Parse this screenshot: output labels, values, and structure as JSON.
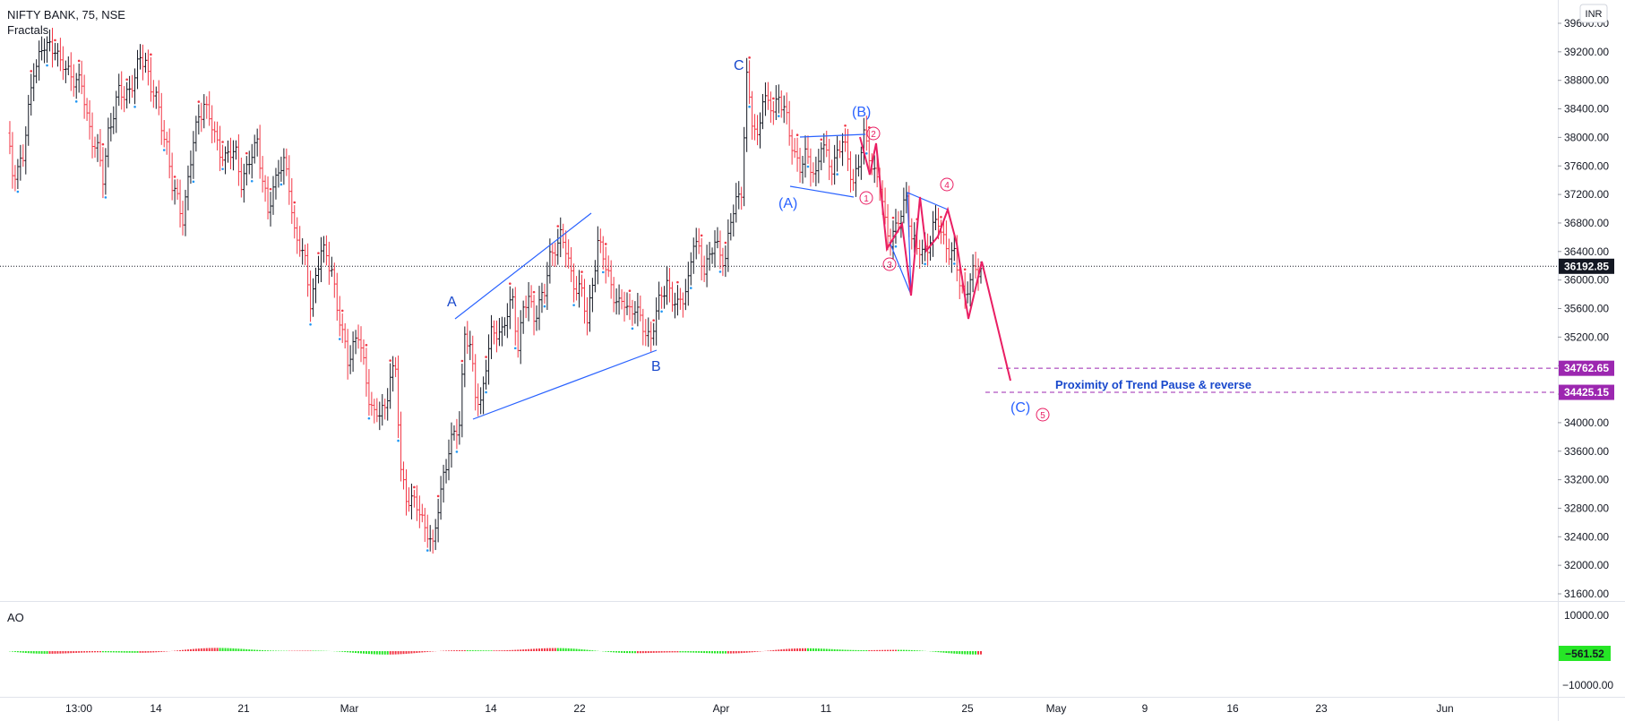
{
  "header": {
    "symbol": "NIFTY BANK, 75, NSE",
    "indicator": "Fractals",
    "currency": "INR"
  },
  "ao_panel": {
    "label": "AO",
    "last_value": "−561.52"
  },
  "chart_data": {
    "type": "candlestick",
    "price_axis": {
      "ticks": [
        "39600.00",
        "39200.00",
        "38800.00",
        "38400.00",
        "38000.00",
        "37600.00",
        "37200.00",
        "36800.00",
        "36400.00",
        "36000.00",
        "35600.00",
        "35200.00",
        "34800.00",
        "34400.00",
        "34000.00",
        "33600.00",
        "33200.00",
        "32800.00",
        "32400.00",
        "32000.00",
        "31600.00"
      ],
      "range": [
        31600,
        39600
      ]
    },
    "ao_axis": {
      "ticks": [
        "10000.00",
        "−10000.00"
      ]
    },
    "time_axis": {
      "ticks": [
        "13:00",
        "14",
        "21",
        "Mar",
        "14",
        "22",
        "Apr",
        "11",
        "25",
        "May",
        "9",
        "16",
        "23",
        "Jun"
      ]
    },
    "current_price": "36192.85",
    "levels": [
      {
        "label": "34762.65",
        "value": 34762.65,
        "color": "#9c27b0"
      },
      {
        "label": "34425.15",
        "value": 34425.15,
        "color": "#9c27b0"
      }
    ],
    "path_anchors": [
      [
        0,
        38000
      ],
      [
        2,
        37500
      ],
      [
        6,
        37700
      ],
      [
        10,
        39000
      ],
      [
        14,
        39250
      ],
      [
        18,
        39300
      ],
      [
        20,
        39000
      ],
      [
        24,
        38900
      ],
      [
        28,
        38700
      ],
      [
        30,
        38300
      ],
      [
        32,
        38000
      ],
      [
        34,
        37800
      ],
      [
        36,
        37400
      ],
      [
        38,
        38100
      ],
      [
        42,
        38600
      ],
      [
        44,
        38600
      ],
      [
        48,
        38800
      ],
      [
        50,
        39100
      ],
      [
        52,
        39100
      ],
      [
        54,
        38700
      ],
      [
        56,
        38500
      ],
      [
        60,
        37900
      ],
      [
        62,
        37300
      ],
      [
        66,
        36900
      ],
      [
        68,
        37400
      ],
      [
        70,
        37900
      ],
      [
        72,
        38300
      ],
      [
        74,
        38500
      ],
      [
        78,
        38000
      ],
      [
        82,
        37700
      ],
      [
        86,
        37800
      ],
      [
        88,
        37400
      ],
      [
        90,
        37500
      ],
      [
        94,
        38000
      ],
      [
        96,
        37400
      ],
      [
        98,
        36900
      ],
      [
        100,
        37300
      ],
      [
        102,
        37600
      ],
      [
        104,
        37600
      ],
      [
        106,
        37300
      ],
      [
        108,
        36700
      ],
      [
        110,
        36500
      ],
      [
        112,
        36200
      ],
      [
        114,
        35700
      ],
      [
        118,
        36400
      ],
      [
        120,
        36300
      ],
      [
        122,
        36200
      ],
      [
        124,
        35600
      ],
      [
        126,
        35200
      ],
      [
        128,
        34900
      ],
      [
        130,
        35100
      ],
      [
        132,
        35200
      ],
      [
        134,
        34800
      ],
      [
        136,
        34400
      ],
      [
        138,
        34100
      ],
      [
        140,
        34100
      ],
      [
        142,
        34200
      ],
      [
        144,
        34700
      ],
      [
        146,
        34700
      ],
      [
        148,
        33300
      ],
      [
        150,
        33000
      ],
      [
        154,
        32800
      ],
      [
        158,
        32500
      ],
      [
        160,
        32200
      ],
      [
        162,
        32800
      ],
      [
        164,
        33300
      ],
      [
        166,
        33600
      ],
      [
        168,
        33800
      ],
      [
        170,
        34000
      ],
      [
        172,
        35300
      ],
      [
        174,
        35000
      ],
      [
        176,
        34400
      ],
      [
        178,
        34300
      ],
      [
        180,
        34800
      ],
      [
        182,
        35200
      ],
      [
        184,
        35300
      ],
      [
        186,
        35300
      ],
      [
        188,
        35500
      ],
      [
        190,
        35700
      ],
      [
        192,
        35100
      ],
      [
        194,
        35600
      ],
      [
        196,
        35700
      ],
      [
        198,
        35500
      ],
      [
        200,
        35700
      ],
      [
        202,
        35800
      ],
      [
        204,
        36300
      ],
      [
        206,
        36500
      ],
      [
        208,
        36600
      ],
      [
        210,
        36400
      ],
      [
        212,
        36100
      ],
      [
        214,
        35900
      ],
      [
        216,
        35800
      ],
      [
        218,
        35400
      ],
      [
        220,
        36000
      ],
      [
        222,
        36500
      ],
      [
        224,
        36300
      ],
      [
        226,
        36100
      ],
      [
        228,
        35800
      ],
      [
        230,
        35600
      ],
      [
        232,
        35700
      ],
      [
        234,
        35600
      ],
      [
        236,
        35600
      ],
      [
        238,
        35400
      ],
      [
        240,
        35300
      ],
      [
        242,
        35200
      ],
      [
        244,
        35500
      ],
      [
        246,
        35800
      ],
      [
        248,
        36000
      ],
      [
        250,
        35700
      ],
      [
        252,
        35600
      ],
      [
        254,
        35800
      ],
      [
        256,
        36000
      ],
      [
        258,
        36500
      ],
      [
        260,
        36400
      ],
      [
        262,
        36200
      ],
      [
        264,
        36300
      ],
      [
        266,
        36500
      ],
      [
        268,
        36400
      ],
      [
        270,
        36300
      ],
      [
        272,
        36800
      ],
      [
        274,
        37100
      ],
      [
        276,
        37300
      ],
      [
        278,
        38800
      ],
      [
        280,
        38200
      ],
      [
        282,
        38000
      ],
      [
        284,
        38600
      ],
      [
        286,
        38400
      ],
      [
        288,
        38400
      ],
      [
        290,
        38600
      ],
      [
        292,
        38400
      ],
      [
        294,
        38000
      ],
      [
        296,
        37800
      ],
      [
        298,
        37600
      ],
      [
        300,
        37700
      ],
      [
        302,
        37600
      ],
      [
        304,
        37500
      ],
      [
        306,
        37900
      ],
      [
        308,
        37700
      ],
      [
        310,
        37600
      ],
      [
        312,
        37800
      ],
      [
        314,
        37900
      ],
      [
        316,
        37700
      ],
      [
        318,
        37400
      ],
      [
        320,
        37600
      ],
      [
        322,
        38000
      ],
      [
        324,
        37800
      ],
      [
        326,
        37500
      ],
      [
        328,
        37300
      ],
      [
        330,
        36800
      ],
      [
        332,
        36600
      ],
      [
        334,
        36700
      ],
      [
        336,
        36900
      ],
      [
        338,
        37200
      ],
      [
        340,
        36600
      ],
      [
        342,
        36400
      ],
      [
        344,
        36400
      ],
      [
        346,
        36500
      ],
      [
        348,
        36700
      ],
      [
        350,
        36800
      ],
      [
        352,
        36600
      ],
      [
        354,
        36400
      ],
      [
        356,
        36300
      ],
      [
        358,
        36000
      ],
      [
        360,
        35800
      ],
      [
        362,
        36000
      ],
      [
        364,
        36100
      ],
      [
        366,
        36200
      ]
    ],
    "elliott_waves": {
      "abc_labels": [
        "A",
        "B",
        "C"
      ],
      "sub_labels": [
        "(A)",
        "(B)",
        "(C)"
      ],
      "impulse_labels": [
        "1",
        "2",
        "3",
        "4",
        "5"
      ]
    },
    "annotation": "Proximity of Trend Pause & reverse",
    "ao_series_note": "Awesome Oscillator histogram"
  }
}
